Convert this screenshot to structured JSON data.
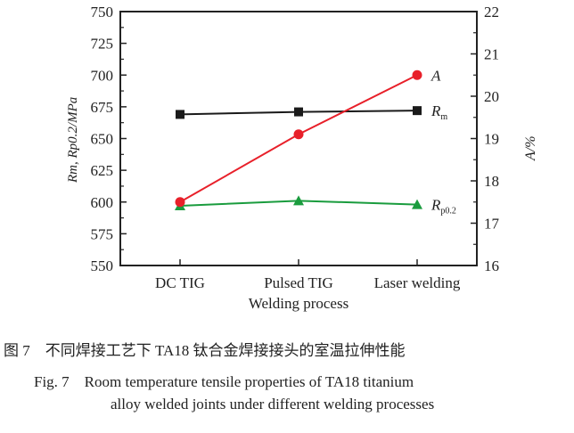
{
  "chart_data": {
    "type": "line",
    "categories": [
      "DC TIG",
      "Pulsed TIG",
      "Laser welding"
    ],
    "xlabel": "Welding process",
    "ylabel_left": "Rm, Rp0.2/MPa",
    "ylabel_right": "A/%",
    "ylim_left": [
      550,
      750
    ],
    "yticks_left": [
      550,
      575,
      600,
      625,
      650,
      675,
      700,
      725,
      750
    ],
    "ylim_right": [
      16,
      22
    ],
    "yticks_right": [
      16,
      17,
      18,
      19,
      20,
      21,
      22
    ],
    "grid": false,
    "series": [
      {
        "name": "Rm",
        "axis": "left",
        "marker": "square",
        "color": "#1a1a1a",
        "values": [
          669,
          671,
          672
        ]
      },
      {
        "name": "Rp0.2",
        "axis": "left",
        "marker": "triangle",
        "color": "#1a9c3e",
        "values": [
          597,
          601,
          598
        ]
      },
      {
        "name": "A",
        "axis": "right",
        "marker": "circle",
        "color": "#e8202a",
        "values": [
          17.5,
          19.1,
          20.5
        ]
      }
    ]
  },
  "caption": {
    "cn": "图 7　不同焊接工艺下 TA18 钛合金焊接接头的室温拉伸性能",
    "en_line1": "Fig. 7　Room temperature tensile properties of TA18 titanium",
    "en_line2": "alloy welded joints under different welding processes"
  }
}
